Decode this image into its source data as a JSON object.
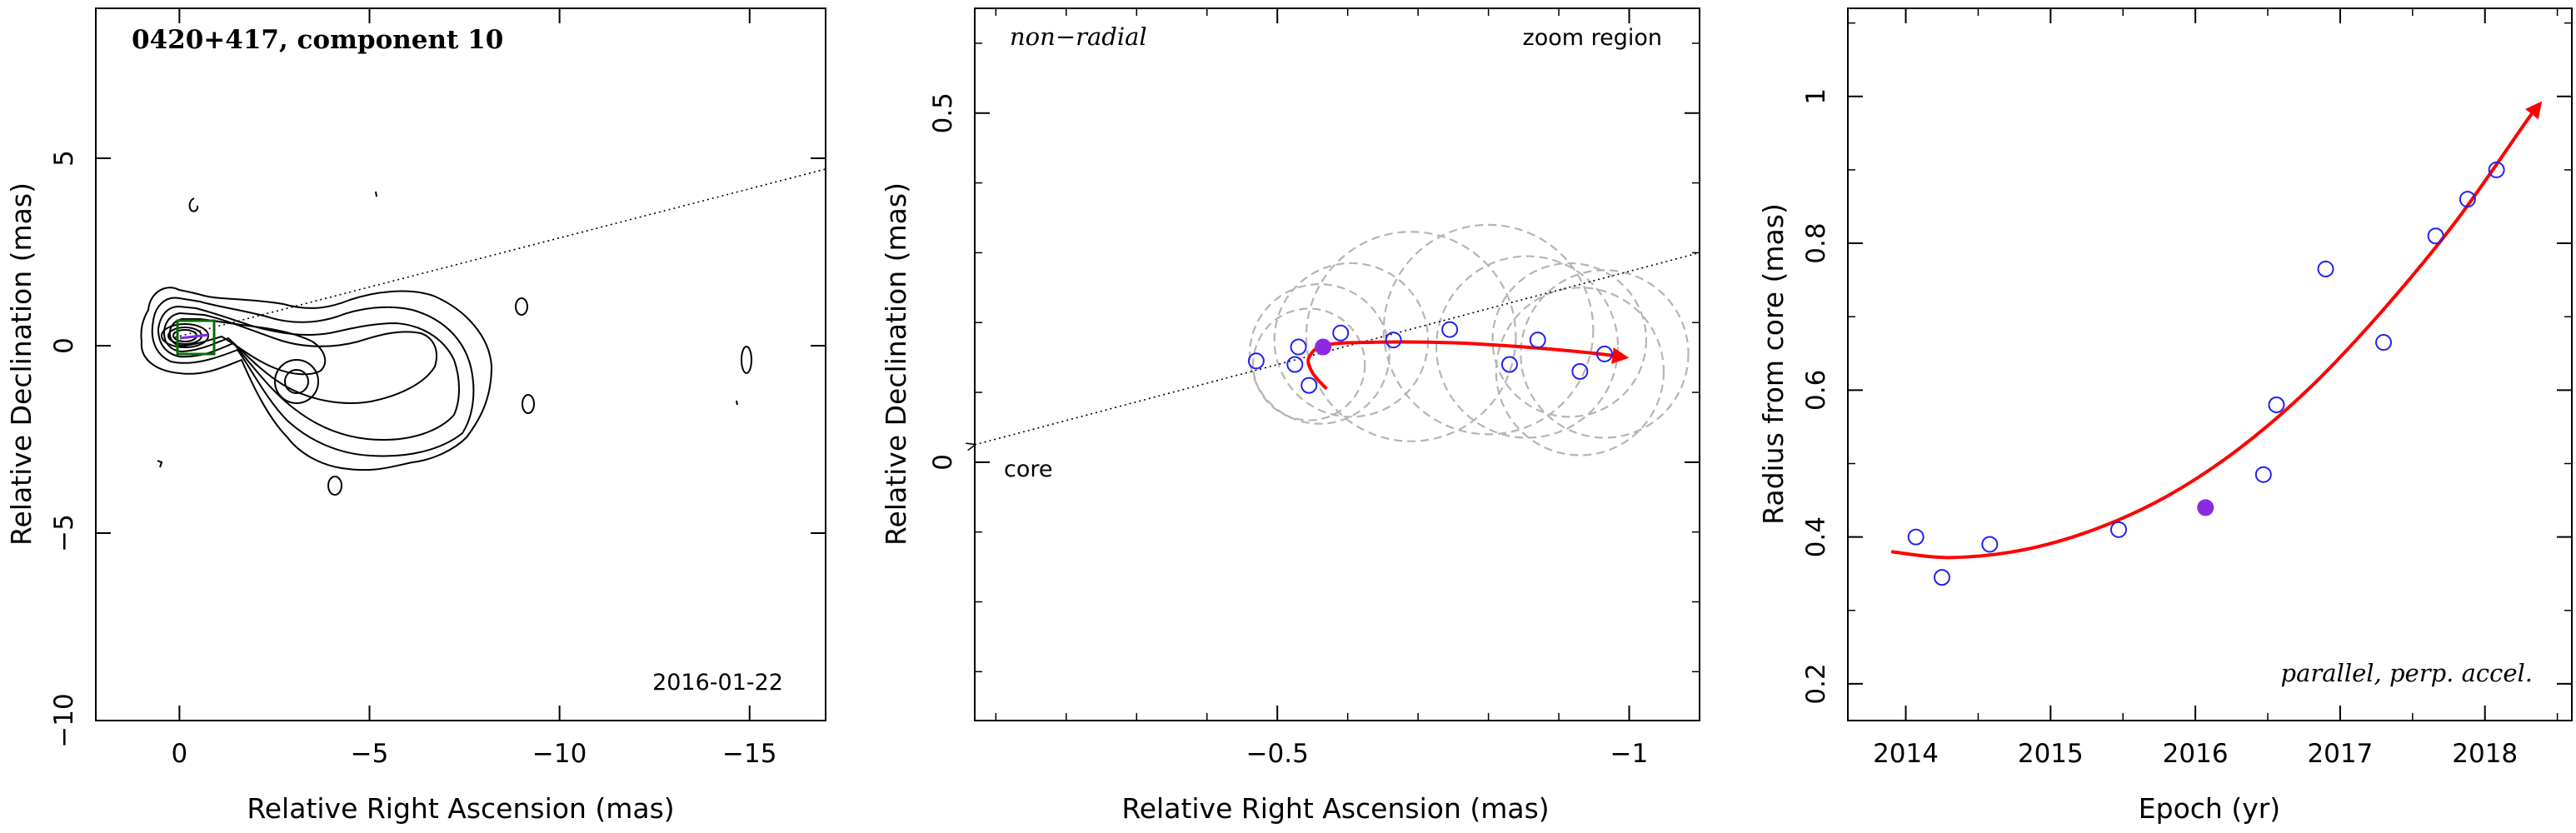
{
  "figure": {
    "panel1": {
      "title": "0420+417, component 10",
      "date_label": "2016-01-22",
      "xlabel": "Relative Right Ascension (mas)",
      "ylabel": "Relative Declination (mas)",
      "xlim": [
        2.2,
        -17
      ],
      "ylim": [
        -10,
        9
      ],
      "xticks": [
        "0",
        "−5",
        "−10",
        "−15"
      ],
      "yticks": [
        "−10",
        "−5",
        "0",
        "5"
      ]
    },
    "panel2": {
      "label_left": "non−radial",
      "label_right": "zoom region",
      "core_label": "core",
      "xlabel": "Relative Right Ascension (mas)",
      "ylabel": "Relative Declination (mas)",
      "xlim": [
        -0.07,
        -1.1
      ],
      "ylim": [
        -0.37,
        0.65
      ],
      "xticks": [
        "−0.5",
        "−1"
      ],
      "yticks": [
        "0",
        "0.5"
      ]
    },
    "panel3": {
      "label": "parallel, perp. accel.",
      "xlabel": "Epoch (yr)",
      "ylabel": "Radius from core (mas)",
      "xlim": [
        2013.6,
        2018.6
      ],
      "ylim": [
        0.15,
        1.12
      ],
      "xticks": [
        "2014",
        "2015",
        "2016",
        "2017",
        "2018"
      ],
      "yticks": [
        "0.2",
        "0.4",
        "0.6",
        "0.8",
        "1"
      ]
    }
  },
  "colors": {
    "fit_curve": "#ff0000",
    "open_points": "#2222ee",
    "highlight_point": "#8a2be2",
    "circles": "#b5b5b5",
    "box": "#0a6a0a"
  },
  "chart_data": [
    {
      "type": "scatter",
      "panel": "component position (zoom region)",
      "x_axis": "Relative Right Ascension (mas)",
      "y_axis": "Relative Declination (mas)",
      "xlim": [
        -0.07,
        -1.1
      ],
      "ylim": [
        -0.37,
        0.65
      ],
      "points_open": [
        {
          "x": -0.47,
          "y": 0.145
        },
        {
          "x": -0.525,
          "y": 0.14
        },
        {
          "x": -0.53,
          "y": 0.165
        },
        {
          "x": -0.545,
          "y": 0.11
        },
        {
          "x": -0.59,
          "y": 0.185
        },
        {
          "x": -0.665,
          "y": 0.175
        },
        {
          "x": -0.745,
          "y": 0.19
        },
        {
          "x": -0.83,
          "y": 0.14
        },
        {
          "x": -0.87,
          "y": 0.175
        },
        {
          "x": -0.93,
          "y": 0.13
        },
        {
          "x": -0.965,
          "y": 0.155
        }
      ],
      "points_filled": [
        {
          "x": -0.565,
          "y": 0.165
        }
      ],
      "fit_curve": [
        {
          "x": -0.57,
          "y": 0.105
        },
        {
          "x": -0.55,
          "y": 0.128
        },
        {
          "x": -0.545,
          "y": 0.15
        },
        {
          "x": -0.57,
          "y": 0.168
        },
        {
          "x": -0.65,
          "y": 0.172
        },
        {
          "x": -0.75,
          "y": 0.171
        },
        {
          "x": -0.85,
          "y": 0.165
        },
        {
          "x": -0.95,
          "y": 0.156
        },
        {
          "x": -0.995,
          "y": 0.15
        }
      ],
      "circles": [
        {
          "x": -0.545,
          "y": 0.14,
          "r": 0.08
        },
        {
          "x": -0.56,
          "y": 0.155,
          "r": 0.1
        },
        {
          "x": -0.605,
          "y": 0.175,
          "r": 0.11
        },
        {
          "x": -0.69,
          "y": 0.18,
          "r": 0.15
        },
        {
          "x": -0.8,
          "y": 0.19,
          "r": 0.15
        },
        {
          "x": -0.855,
          "y": 0.165,
          "r": 0.13
        },
        {
          "x": -0.915,
          "y": 0.175,
          "r": 0.11
        },
        {
          "x": -0.93,
          "y": 0.13,
          "r": 0.12
        },
        {
          "x": -0.965,
          "y": 0.155,
          "r": 0.12
        }
      ],
      "jet_direction": [
        {
          "x": -0.07,
          "y": 0.025
        },
        {
          "x": -1.1,
          "y": 0.3
        }
      ]
    },
    {
      "type": "scatter",
      "panel": "radius vs epoch",
      "x_axis": "Epoch (yr)",
      "y_axis": "Radius from core (mas)",
      "xlim": [
        2013.6,
        2018.6
      ],
      "ylim": [
        0.15,
        1.12
      ],
      "points_open": [
        {
          "x": 2014.07,
          "y": 0.4
        },
        {
          "x": 2014.25,
          "y": 0.345
        },
        {
          "x": 2014.58,
          "y": 0.39
        },
        {
          "x": 2015.47,
          "y": 0.41
        },
        {
          "x": 2016.47,
          "y": 0.485
        },
        {
          "x": 2016.56,
          "y": 0.58
        },
        {
          "x": 2016.9,
          "y": 0.765
        },
        {
          "x": 2017.3,
          "y": 0.665
        },
        {
          "x": 2017.66,
          "y": 0.81
        },
        {
          "x": 2017.88,
          "y": 0.86
        },
        {
          "x": 2018.08,
          "y": 0.9
        }
      ],
      "points_filled": [
        {
          "x": 2016.07,
          "y": 0.44
        }
      ],
      "fit_curve": [
        {
          "x": 2013.9,
          "y": 0.38
        },
        {
          "x": 2014.3,
          "y": 0.372
        },
        {
          "x": 2014.8,
          "y": 0.382
        },
        {
          "x": 2015.3,
          "y": 0.41
        },
        {
          "x": 2015.8,
          "y": 0.455
        },
        {
          "x": 2016.3,
          "y": 0.52
        },
        {
          "x": 2016.8,
          "y": 0.605
        },
        {
          "x": 2017.3,
          "y": 0.71
        },
        {
          "x": 2017.8,
          "y": 0.83
        },
        {
          "x": 2018.3,
          "y": 0.97
        },
        {
          "x": 2018.38,
          "y": 0.99
        }
      ]
    }
  ]
}
